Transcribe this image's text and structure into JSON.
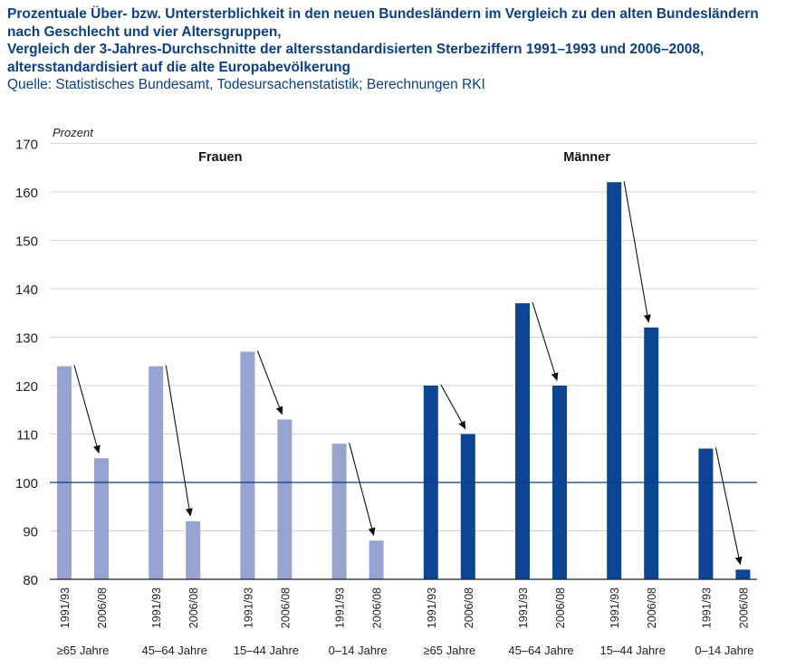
{
  "header": {
    "title_lines": [
      "Prozentuale Über- bzw. Untersterblichkeit in den neuen Bundesländern im Vergleich zu den alten Bundesländern",
      "nach Geschlecht und vier Altersgruppen,",
      "Vergleich der 3-Jahres-Durchschnitte der altersstandardisierten Sterbeziffern 1991–1993 und 2006–2008,",
      "altersstandardisiert auf die alte Europabevölkerung"
    ],
    "source": "Quelle: Statistisches Bundesamt, Todesursachenstatistik; Berechnungen RKI"
  },
  "chart_data": {
    "type": "bar",
    "ylabel": "Prozent",
    "ylim": [
      80,
      170
    ],
    "yticks": [
      80,
      90,
      100,
      110,
      120,
      130,
      140,
      150,
      160,
      170
    ],
    "reference_line": 100,
    "grid": true,
    "period_labels": [
      "1991/93",
      "2006/08"
    ],
    "groups": [
      {
        "name": "Frauen",
        "color": "#97a3d1",
        "categories": [
          {
            "label": "≥65 Jahre",
            "values": [
              124,
              105
            ]
          },
          {
            "label": "45–64 Jahre",
            "values": [
              124,
              92
            ]
          },
          {
            "label": "15–44 Jahre",
            "values": [
              127,
              113
            ]
          },
          {
            "label": "0–14 Jahre",
            "values": [
              108,
              88
            ]
          }
        ]
      },
      {
        "name": "Männer",
        "color": "#0b4594",
        "categories": [
          {
            "label": "≥65 Jahre",
            "values": [
              120,
              110
            ]
          },
          {
            "label": "45–64 Jahre",
            "values": [
              137,
              120
            ]
          },
          {
            "label": "15–44 Jahre",
            "values": [
              162,
              132
            ]
          },
          {
            "label": "0–14 Jahre",
            "values": [
              107,
              82
            ]
          }
        ]
      }
    ]
  }
}
